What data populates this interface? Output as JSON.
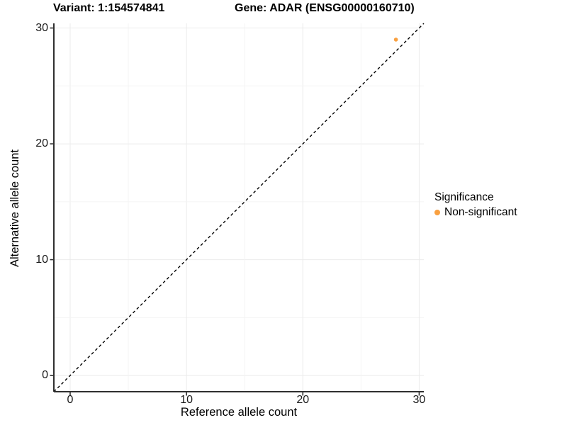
{
  "header": {
    "variant_label": "Variant: 1:154574841",
    "gene_label": "Gene: ADAR (ENSG00000160710)"
  },
  "chart_data": {
    "type": "scatter",
    "title": "Variant: 1:154574841    Gene: ADAR (ENSG00000160710)",
    "xlabel": "Reference allele count",
    "ylabel": "Alternative allele count",
    "xlim": [
      -1.4,
      30.4
    ],
    "ylim": [
      -1.4,
      30.4
    ],
    "x_ticks": [
      0,
      10,
      20,
      30
    ],
    "y_ticks": [
      0,
      10,
      20,
      30
    ],
    "minor_tick_step": 5,
    "grid": true,
    "points": [
      {
        "x": 28,
        "y": 29,
        "series": "Non-significant"
      }
    ],
    "reference_line": {
      "slope": 1,
      "intercept": 0,
      "style": "dashed",
      "color": "#000000"
    },
    "legend": {
      "title": "Significance",
      "position": "right",
      "entries": [
        {
          "label": "Non-significant",
          "color": "#F9A040"
        }
      ]
    },
    "colors": {
      "point": "#F9A040",
      "major_grid": "#EBEBEB",
      "minor_grid": "#F4F4F4",
      "axis_line": "#2F2F2F",
      "background": "#FFFFFF"
    }
  }
}
